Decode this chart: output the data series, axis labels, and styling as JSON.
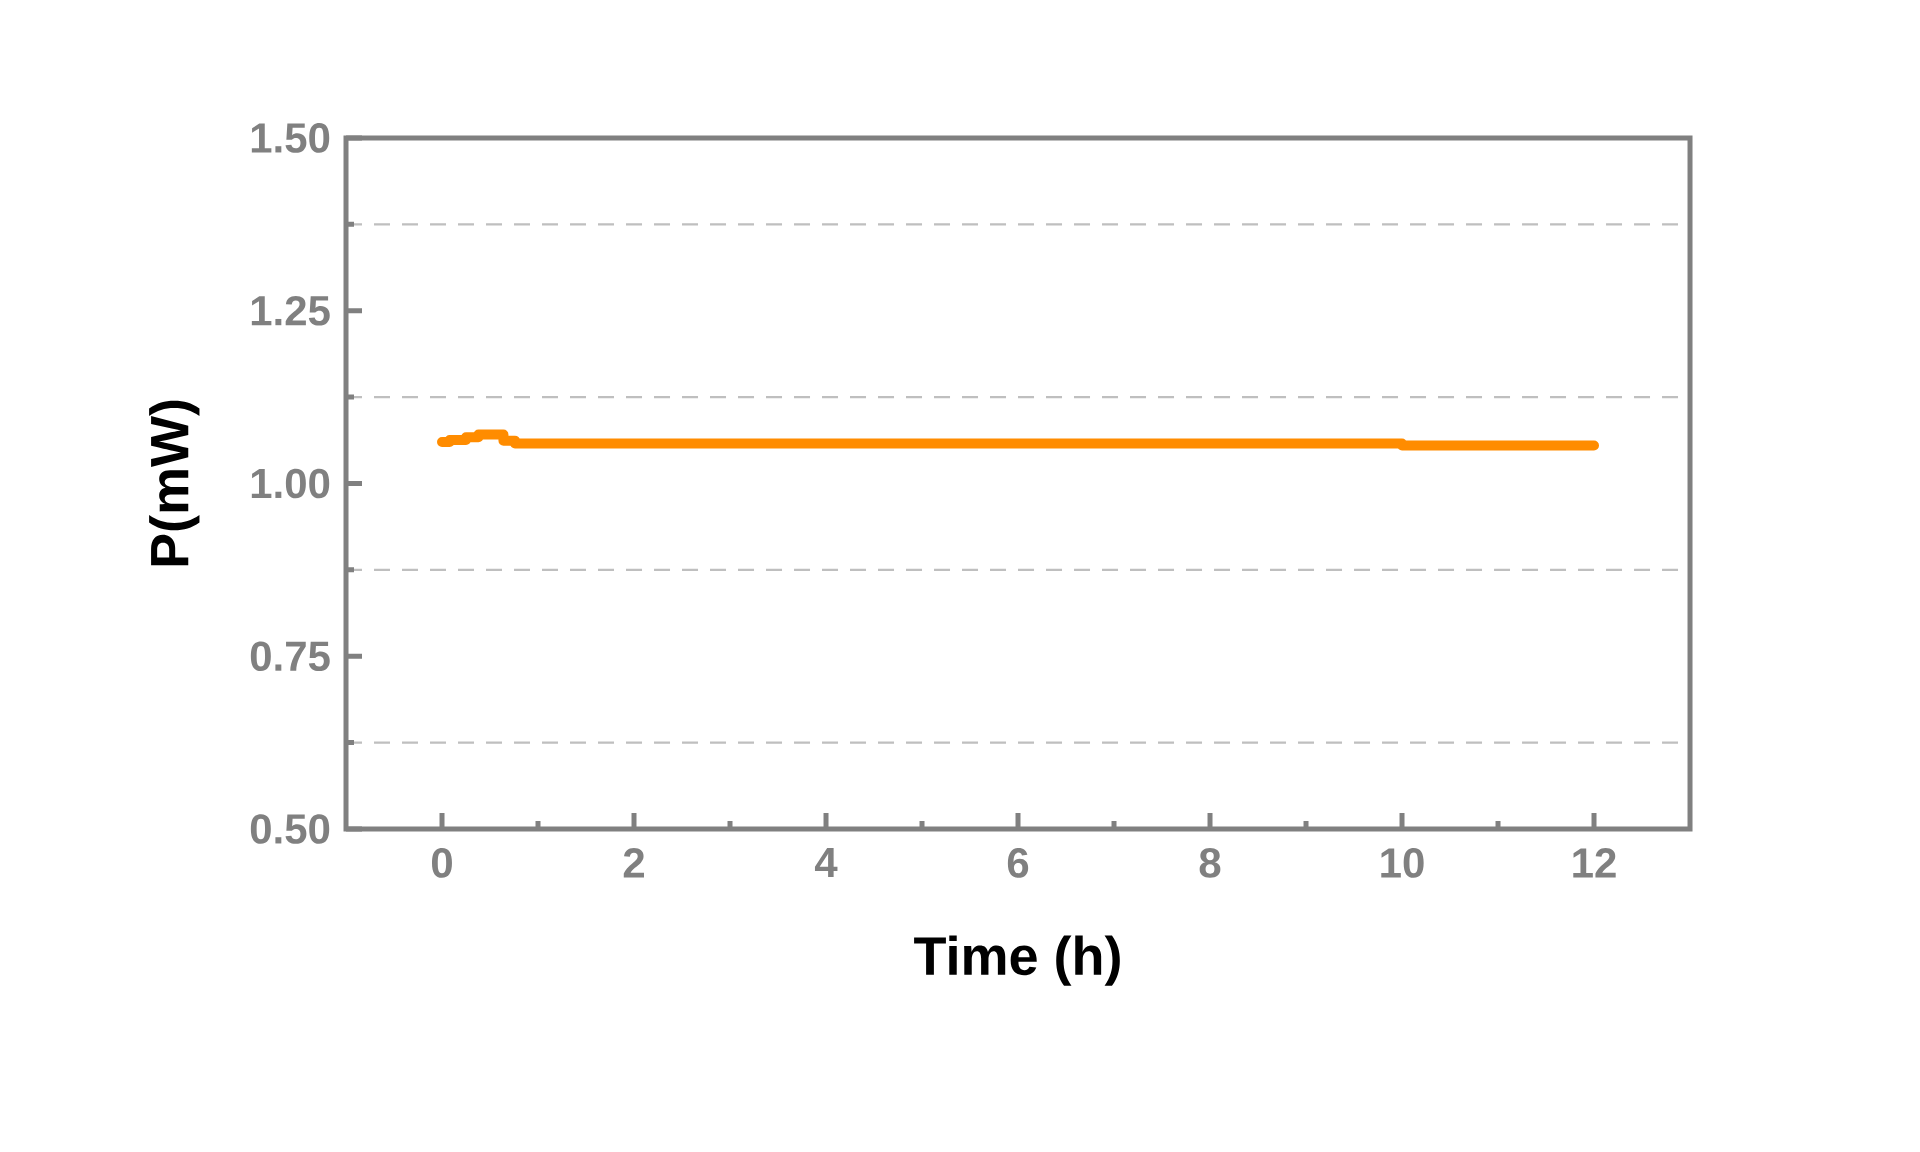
{
  "chart_data": {
    "type": "line",
    "xlabel": "Time (h)",
    "ylabel": "P(mW)",
    "xlim": [
      -1,
      13
    ],
    "ylim": [
      0.5,
      1.5
    ],
    "xticks": [
      0,
      {
        "value": 1,
        "label": null
      },
      2,
      {
        "value": 3,
        "label": null
      },
      4,
      {
        "value": 5,
        "label": null
      },
      6,
      {
        "value": 7,
        "label": null
      },
      8,
      {
        "value": 9,
        "label": null
      },
      10,
      {
        "value": 11,
        "label": null
      },
      12
    ],
    "yticks": [
      {
        "value": 0.5,
        "label": "0.50"
      },
      {
        "value": 0.625,
        "label": null
      },
      {
        "value": 0.75,
        "label": "0.75"
      },
      {
        "value": 0.875,
        "label": null
      },
      {
        "value": 1.0,
        "label": "1.00"
      },
      {
        "value": 1.125,
        "label": null
      },
      {
        "value": 1.25,
        "label": "1.25"
      },
      {
        "value": 1.375,
        "label": null
      },
      {
        "value": 1.5,
        "label": "1.50"
      }
    ],
    "grid": "y",
    "marker": "none",
    "line_style": "solid",
    "series": [
      {
        "color": "#ff8c00",
        "x": [
          0,
          0.08,
          0.08,
          0.25,
          0.25,
          0.38,
          0.38,
          0.64,
          0.64,
          0.76,
          0.76,
          10.0,
          10.0,
          12
        ],
        "values": [
          1.06,
          1.06,
          1.063,
          1.063,
          1.067,
          1.067,
          1.071,
          1.071,
          1.062,
          1.062,
          1.058,
          1.058,
          1.055,
          1.055
        ]
      }
    ]
  }
}
